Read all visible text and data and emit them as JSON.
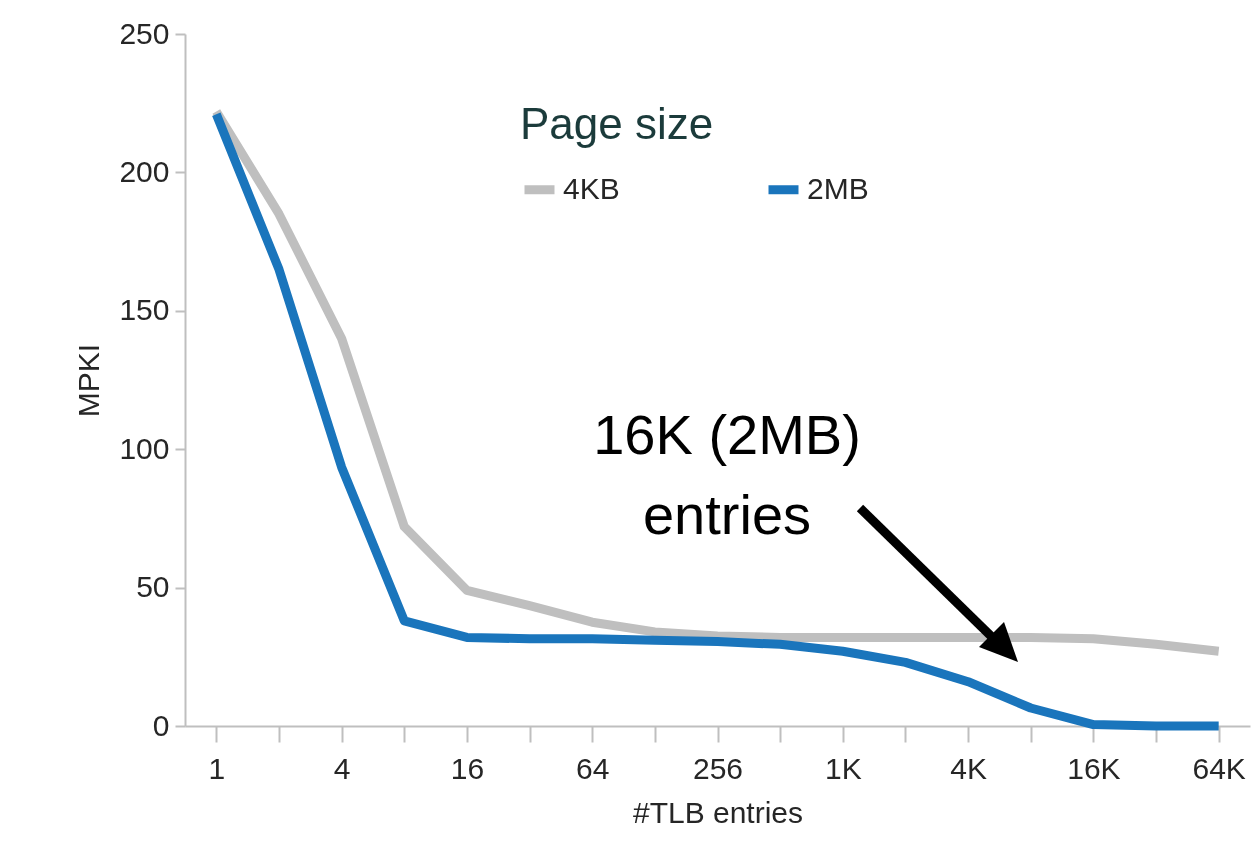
{
  "chart_data": {
    "type": "line",
    "xlabel": "#TLB entries",
    "ylabel": "MPKI",
    "legend_title": "Page size",
    "legend": "top",
    "grid": false,
    "categories": [
      "1",
      null,
      "4",
      null,
      "16",
      null,
      "64",
      null,
      "256",
      null,
      "1K",
      null,
      "4K",
      null,
      "16K",
      null,
      "64K"
    ],
    "ylim": [
      0,
      250
    ],
    "yticks": [
      0,
      50,
      100,
      150,
      200,
      250
    ],
    "annotations": [
      "16K (2MB)\nentries"
    ],
    "series": [
      {
        "name": "4KB",
        "color": "#bfbfbf",
        "values": [
          222,
          185,
          140,
          72,
          49,
          43.5,
          37.5,
          34,
          32.5,
          32,
          32,
          32,
          32,
          32,
          31.5,
          29.5,
          27
        ]
      },
      {
        "name": "2MB",
        "color": "#1a75bc",
        "values": [
          221,
          165,
          93.5,
          38,
          32,
          31.5,
          31.5,
          31,
          30.5,
          29.5,
          27,
          23,
          16,
          6.5,
          0.5,
          0,
          0
        ]
      }
    ]
  }
}
